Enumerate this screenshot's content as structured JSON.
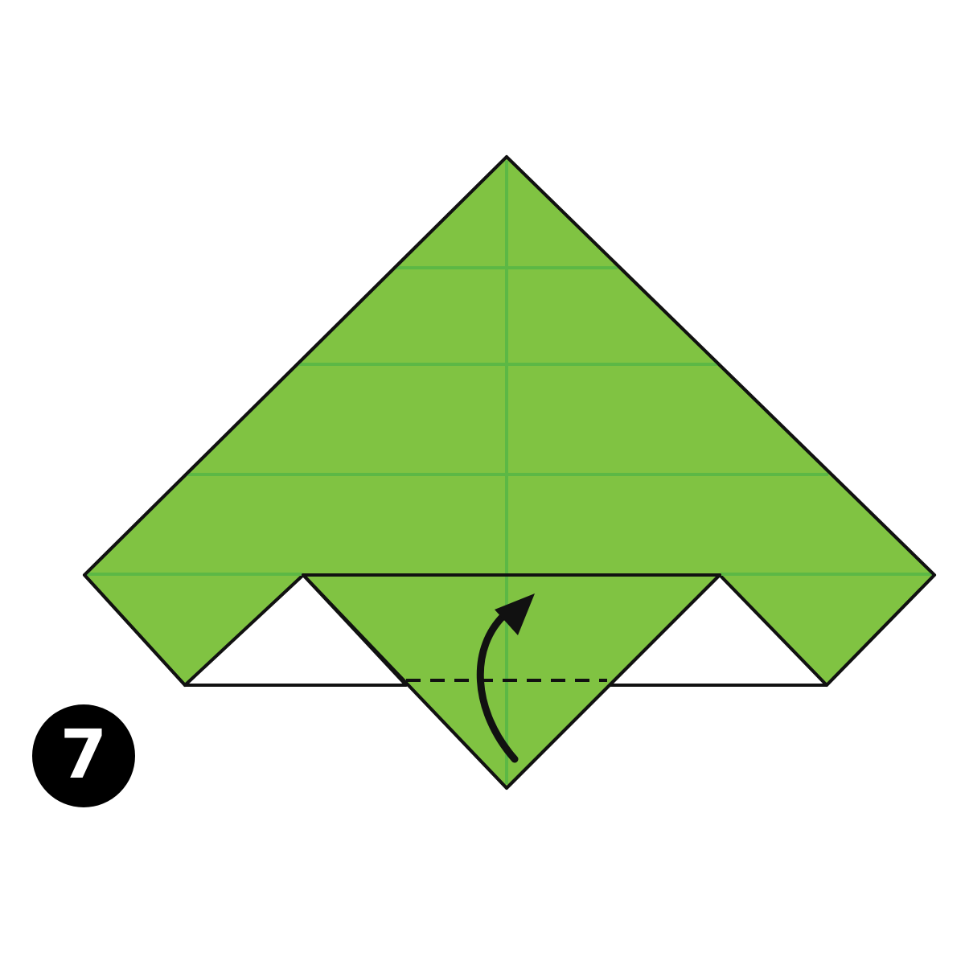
{
  "step": {
    "number": "7"
  },
  "colors": {
    "paper_green": "#80c342",
    "crease_green": "#5cb845",
    "outline": "#111111",
    "paper_white": "#ffffff",
    "badge": "#000000"
  },
  "icons": {
    "fold_arrow": "curved-arrow-up-icon",
    "fold_line": "dashed-valley-fold-line"
  }
}
